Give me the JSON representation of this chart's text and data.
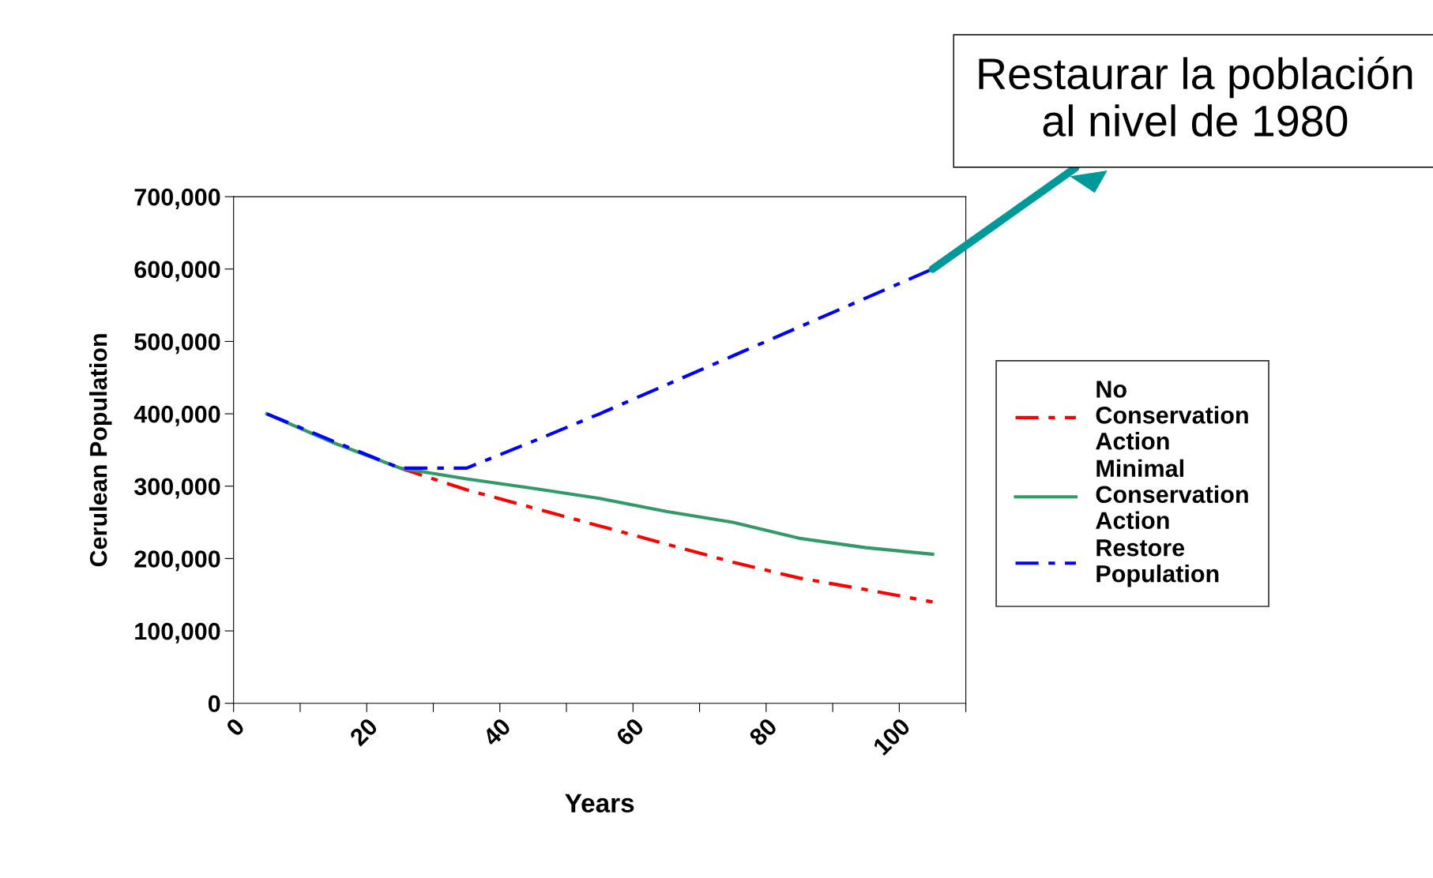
{
  "chart_data": {
    "type": "line",
    "xlabel": "Years",
    "ylabel": "Cerulean Population",
    "x": [
      5,
      15,
      25,
      35,
      45,
      55,
      65,
      75,
      85,
      95,
      105
    ],
    "series": [
      {
        "name": "No Conservation Action",
        "color": "#ff0000",
        "line_style": "dashed",
        "values": [
          null,
          null,
          325000,
          295000,
          270000,
          245000,
          220000,
          195000,
          173000,
          157000,
          140000
        ]
      },
      {
        "name": "Minimal Conservation Action",
        "color": "#339966",
        "line_style": "solid",
        "values": [
          400000,
          360000,
          325000,
          310000,
          297000,
          283000,
          265000,
          250000,
          228000,
          215000,
          206000
        ]
      },
      {
        "name": "Restore Population",
        "color": "#0000ff",
        "line_style": "dashed",
        "values": [
          400000,
          362000,
          325000,
          325000,
          362000,
          400000,
          440000,
          480000,
          520000,
          560000,
          600000
        ]
      }
    ],
    "xlim": [
      0,
      110
    ],
    "xticks": [
      0,
      {
        "value": 10,
        "label": null
      },
      20,
      {
        "value": 30,
        "label": null
      },
      40,
      {
        "value": 50,
        "label": null
      },
      60,
      {
        "value": 70,
        "label": null
      },
      80,
      {
        "value": 90,
        "label": null
      },
      100,
      {
        "value": 110,
        "label": null
      }
    ],
    "ylim": [
      0,
      700000
    ],
    "yticks": [
      {
        "value": 0,
        "label": "0"
      },
      {
        "value": 100000,
        "label": "100,000"
      },
      {
        "value": 200000,
        "label": "200,000"
      },
      {
        "value": 300000,
        "label": "300,000"
      },
      {
        "value": 400000,
        "label": "400,000"
      },
      {
        "value": 500000,
        "label": "500,000"
      },
      {
        "value": 600000,
        "label": "600,000"
      },
      {
        "value": 700000,
        "label": "700,000"
      }
    ],
    "grid": false,
    "legend": "right",
    "marker": "none",
    "annotations": [
      {
        "text": "Restaurar la población al nivel de 1980",
        "x": 105,
        "y": 600000
      }
    ]
  }
}
